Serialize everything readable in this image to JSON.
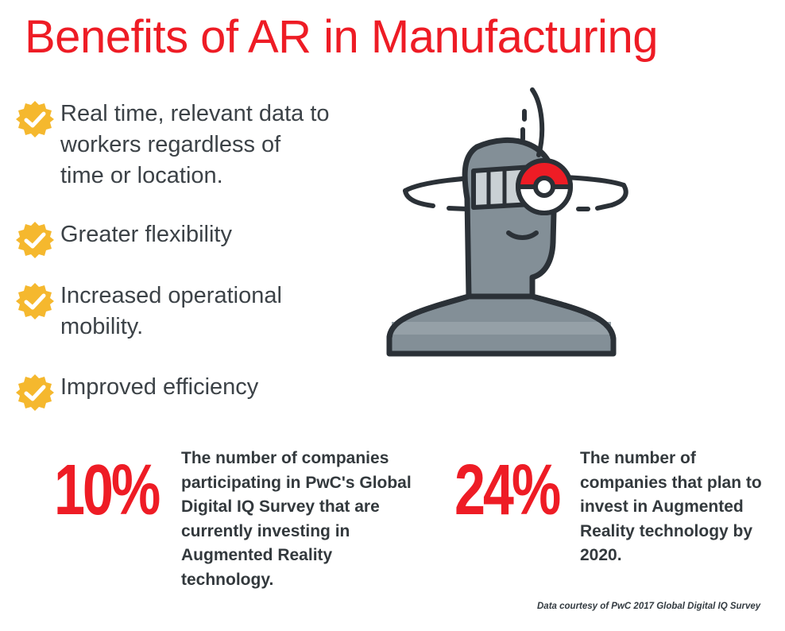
{
  "title": "Benefits of AR in Manufacturing",
  "benefits": [
    {
      "icon": "check-badge-icon",
      "text": "Real time, relevant data to workers regardless of time or location."
    },
    {
      "icon": "check-badge-icon",
      "text": "Greater flexibility"
    },
    {
      "icon": "check-badge-icon",
      "text": "Increased operational mobility."
    },
    {
      "icon": "check-badge-icon",
      "text": "Improved efficiency"
    }
  ],
  "illustration": {
    "icon": "ar-headset-person-icon"
  },
  "stats": [
    {
      "value": "10%",
      "description": "The number of companies participating in PwC's Global Digital IQ Survey that are currently investing in Augmented Reality technology."
    },
    {
      "value": "24%",
      "description": "The number of companies that plan to invest in Augmented Reality technology by 2020."
    }
  ],
  "credit": "Data courtesy of PwC 2017 Global Digital IQ Survey",
  "colors": {
    "accent": "#ee1c25",
    "badge": "#f5b82e",
    "text": "#333b41",
    "figure": "#838f97",
    "outline": "#2b3137"
  }
}
